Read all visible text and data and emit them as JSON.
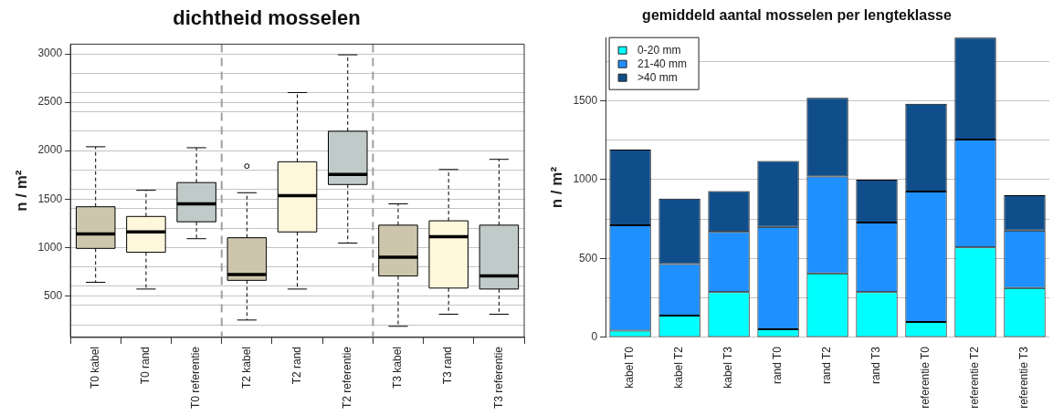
{
  "chart_data": [
    {
      "type": "box",
      "title": "dichtheid mosselen",
      "ylabel": "n / m²",
      "categories": [
        "T0 kabel",
        "T0 rand",
        "T0 referentie",
        "T2 kabel",
        "T2 rand",
        "T2 referentie",
        "T3 kabel",
        "T3 rand",
        "T3 referentie"
      ],
      "colors": [
        "#cdc6ad",
        "#fff7dc",
        "#c0cbc9",
        "#cdc6ad",
        "#fff7dc",
        "#c0cbc9",
        "#cdc6ad",
        "#fff7dc",
        "#c0cbc9"
      ],
      "boxes": [
        {
          "low": 640,
          "q1": 990,
          "median": 1140,
          "q3": 1420,
          "high": 2040
        },
        {
          "low": 570,
          "q1": 950,
          "median": 1160,
          "q3": 1320,
          "high": 1590
        },
        {
          "low": 1090,
          "q1": 1265,
          "median": 1450,
          "q3": 1670,
          "high": 2030
        },
        {
          "low": 250,
          "q1": 660,
          "median": 720,
          "q3": 1100,
          "high": 1565,
          "outliers": [
            1840
          ]
        },
        {
          "low": 570,
          "q1": 1160,
          "median": 1535,
          "q3": 1885,
          "high": 2600
        },
        {
          "low": 1045,
          "q1": 1650,
          "median": 1755,
          "q3": 2200,
          "high": 2990
        },
        {
          "low": 185,
          "q1": 705,
          "median": 900,
          "q3": 1230,
          "high": 1450
        },
        {
          "low": 310,
          "q1": 580,
          "median": 1110,
          "q3": 1275,
          "high": 1805
        },
        {
          "low": 310,
          "q1": 570,
          "median": 705,
          "q3": 1230,
          "high": 1910
        }
      ],
      "ylim": [
        70,
        3100
      ],
      "yticks": [
        {
          "value": 200,
          "label": null
        },
        {
          "value": 400,
          "label": null
        },
        500,
        {
          "value": 600,
          "label": null
        },
        {
          "value": 800,
          "label": null
        },
        1000,
        {
          "value": 1200,
          "label": null
        },
        {
          "value": 1400,
          "label": null
        },
        1500,
        {
          "value": 1600,
          "label": null
        },
        {
          "value": 1800,
          "label": null
        },
        2000,
        {
          "value": 2200,
          "label": null
        },
        {
          "value": 2400,
          "label": null
        },
        2500,
        {
          "value": 2600,
          "label": null
        },
        {
          "value": 2800,
          "label": null
        },
        3000
      ],
      "grid": "y"
    },
    {
      "type": "bar",
      "stacked": true,
      "title": "gemiddeld aantal mosselen per lengteklasse",
      "ylabel": "n / m²",
      "categories": [
        "kabel T0",
        "kabel T2",
        "kabel T3",
        "rand T0",
        "rand T2",
        "rand T3",
        "referentie T0",
        "referentie T2",
        "referentie T3"
      ],
      "series": [
        {
          "name": "0-20 mm",
          "color": "#00ffff",
          "values": [
            43,
            138,
            288,
            52,
            406,
            288,
            98,
            571,
            313
          ]
        },
        {
          "name": "21-40 mm",
          "color": "#1e90ff",
          "values": [
            667,
            327,
            381,
            649,
            614,
            440,
            827,
            683,
            365
          ]
        },
        {
          "name": ">40 mm",
          "color": "#104e8b",
          "values": [
            480,
            415,
            258,
            417,
            499,
            272,
            556,
            646,
            224
          ]
        }
      ],
      "ylim": [
        0,
        1900
      ],
      "yticks": [
        0,
        {
          "value": 250,
          "label": null
        },
        500,
        {
          "value": 750,
          "label": null
        },
        1000,
        {
          "value": 1250,
          "label": null
        },
        1500,
        {
          "value": 1750,
          "label": null
        }
      ],
      "grid": "y",
      "legend": "top left"
    }
  ]
}
